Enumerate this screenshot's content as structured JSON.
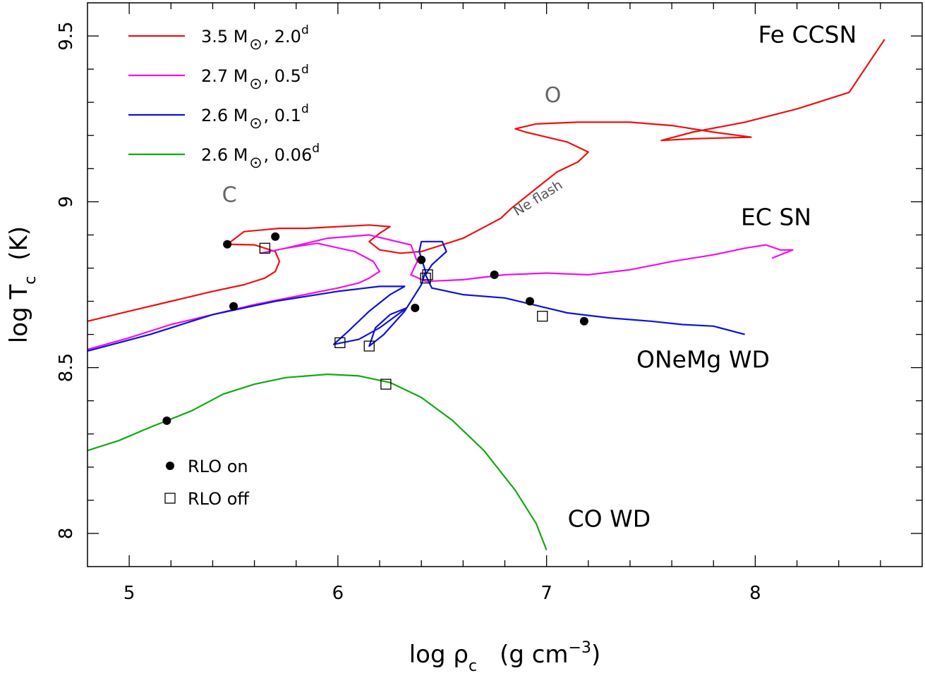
{
  "chart_data": {
    "type": "line",
    "xlabel": "log ρ",
    "xlabel_sub": "c",
    "xlabel_units": "(g cm",
    "xlabel_exp": "−3",
    "ylabel": "log T",
    "ylabel_sub": "c",
    "ylabel_units": "(K)",
    "xlim": [
      4.8,
      8.8
    ],
    "ylim": [
      7.9,
      9.6
    ],
    "xticks": [
      5,
      6,
      7,
      8
    ],
    "yticks": [
      8,
      8.5,
      9,
      9.5
    ],
    "xtick_labels": [
      "5",
      "6",
      "7",
      "8"
    ],
    "ytick_labels": [
      "8",
      "8.5",
      "9",
      "9.5"
    ],
    "legend_position": "top-left",
    "series": [
      {
        "name_mass": "3.5 M",
        "name_period": ", 2.0",
        "name_exp": "d",
        "color": "#ee1111",
        "points": [
          [
            4.8,
            8.64
          ],
          [
            5.0,
            8.67
          ],
          [
            5.2,
            8.7
          ],
          [
            5.4,
            8.73
          ],
          [
            5.55,
            8.75
          ],
          [
            5.65,
            8.77
          ],
          [
            5.7,
            8.79
          ],
          [
            5.72,
            8.82
          ],
          [
            5.7,
            8.85
          ],
          [
            5.6,
            8.87
          ],
          [
            5.47,
            8.872
          ],
          [
            5.55,
            8.91
          ],
          [
            5.72,
            8.92
          ],
          [
            5.85,
            8.92
          ],
          [
            6.0,
            8.925
          ],
          [
            6.15,
            8.93
          ],
          [
            6.25,
            8.925
          ],
          [
            6.2,
            8.905
          ],
          [
            6.15,
            8.88
          ],
          [
            6.2,
            8.855
          ],
          [
            6.3,
            8.845
          ],
          [
            6.4,
            8.85
          ],
          [
            6.5,
            8.87
          ],
          [
            6.6,
            8.89
          ],
          [
            6.72,
            8.93
          ],
          [
            6.78,
            8.95
          ],
          [
            6.83,
            8.98
          ],
          [
            6.95,
            9.04
          ],
          [
            7.05,
            9.09
          ],
          [
            7.15,
            9.12
          ],
          [
            7.2,
            9.15
          ],
          [
            7.1,
            9.18
          ],
          [
            6.9,
            9.21
          ],
          [
            6.85,
            9.22
          ],
          [
            6.95,
            9.235
          ],
          [
            7.15,
            9.24
          ],
          [
            7.4,
            9.24
          ],
          [
            7.6,
            9.23
          ],
          [
            7.8,
            9.21
          ],
          [
            7.98,
            9.195
          ],
          [
            7.7,
            9.19
          ],
          [
            7.55,
            9.185
          ],
          [
            7.7,
            9.21
          ],
          [
            7.95,
            9.24
          ],
          [
            8.2,
            9.28
          ],
          [
            8.45,
            9.33
          ],
          [
            8.62,
            9.49
          ]
        ]
      },
      {
        "name_mass": "2.7 M",
        "name_period": ", 0.5",
        "name_exp": "d",
        "color": "#ee11ee",
        "points": [
          [
            4.8,
            8.555
          ],
          [
            5.0,
            8.59
          ],
          [
            5.2,
            8.63
          ],
          [
            5.4,
            8.66
          ],
          [
            5.6,
            8.69
          ],
          [
            5.8,
            8.715
          ],
          [
            6.0,
            8.74
          ],
          [
            6.1,
            8.755
          ],
          [
            6.15,
            8.77
          ],
          [
            6.2,
            8.79
          ],
          [
            6.17,
            8.82
          ],
          [
            6.08,
            8.85
          ],
          [
            5.9,
            8.875
          ],
          [
            5.75,
            8.86
          ],
          [
            5.63,
            8.845
          ],
          [
            5.75,
            8.86
          ],
          [
            5.95,
            8.89
          ],
          [
            6.15,
            8.9
          ],
          [
            6.35,
            8.87
          ],
          [
            6.38,
            8.82
          ],
          [
            6.35,
            8.78
          ],
          [
            6.42,
            8.76
          ],
          [
            6.6,
            8.765
          ],
          [
            6.8,
            8.78
          ],
          [
            7.0,
            8.785
          ],
          [
            7.2,
            8.78
          ],
          [
            7.4,
            8.795
          ],
          [
            7.6,
            8.82
          ],
          [
            7.8,
            8.84
          ],
          [
            7.95,
            8.86
          ],
          [
            8.05,
            8.87
          ],
          [
            8.12,
            8.855
          ],
          [
            8.18,
            8.855
          ],
          [
            8.12,
            8.84
          ],
          [
            8.08,
            8.83
          ]
        ]
      },
      {
        "name_mass": "2.6 M",
        "name_period": ", 0.1",
        "name_exp": "d",
        "color": "#1111dd",
        "points": [
          [
            4.8,
            8.55
          ],
          [
            5.1,
            8.6
          ],
          [
            5.4,
            8.66
          ],
          [
            5.7,
            8.7
          ],
          [
            6.0,
            8.73
          ],
          [
            6.2,
            8.745
          ],
          [
            6.32,
            8.745
          ],
          [
            6.25,
            8.72
          ],
          [
            6.15,
            8.67
          ],
          [
            6.05,
            8.61
          ],
          [
            5.98,
            8.57
          ],
          [
            6.1,
            8.585
          ],
          [
            6.2,
            8.62
          ],
          [
            6.33,
            8.68
          ],
          [
            6.25,
            8.66
          ],
          [
            6.18,
            8.62
          ],
          [
            6.15,
            8.565
          ],
          [
            6.22,
            8.6
          ],
          [
            6.32,
            8.67
          ],
          [
            6.4,
            8.75
          ],
          [
            6.42,
            8.79
          ],
          [
            6.39,
            8.85
          ],
          [
            6.4,
            8.88
          ],
          [
            6.5,
            8.88
          ],
          [
            6.52,
            8.85
          ],
          [
            6.45,
            8.81
          ],
          [
            6.42,
            8.78
          ],
          [
            6.45,
            8.74
          ],
          [
            6.6,
            8.72
          ],
          [
            6.8,
            8.71
          ],
          [
            7.0,
            8.68
          ],
          [
            7.1,
            8.665
          ],
          [
            7.3,
            8.65
          ],
          [
            7.5,
            8.64
          ],
          [
            7.65,
            8.63
          ],
          [
            7.8,
            8.625
          ],
          [
            7.95,
            8.6
          ]
        ]
      },
      {
        "name_mass": "2.6 M",
        "name_period": ", 0.06",
        "name_exp": "d",
        "color": "#11aa11",
        "points": [
          [
            4.8,
            8.25
          ],
          [
            4.95,
            8.28
          ],
          [
            5.1,
            8.32
          ],
          [
            5.3,
            8.37
          ],
          [
            5.45,
            8.42
          ],
          [
            5.6,
            8.45
          ],
          [
            5.75,
            8.47
          ],
          [
            5.95,
            8.48
          ],
          [
            6.1,
            8.475
          ],
          [
            6.25,
            8.455
          ],
          [
            6.4,
            8.41
          ],
          [
            6.55,
            8.34
          ],
          [
            6.7,
            8.25
          ],
          [
            6.85,
            8.13
          ],
          [
            6.95,
            8.03
          ],
          [
            7.0,
            7.95
          ]
        ]
      }
    ],
    "rlo_on": [
      [
        5.47,
        8.872
      ],
      [
        5.7,
        8.895
      ],
      [
        5.5,
        8.685
      ],
      [
        6.4,
        8.825
      ],
      [
        6.37,
        8.68
      ],
      [
        6.75,
        8.78
      ],
      [
        6.92,
        8.7
      ],
      [
        7.18,
        8.64
      ],
      [
        5.18,
        8.34
      ]
    ],
    "rlo_off": [
      [
        5.65,
        8.86
      ],
      [
        6.01,
        8.575
      ],
      [
        6.15,
        8.565
      ],
      [
        6.43,
        8.78
      ],
      [
        6.42,
        8.77
      ],
      [
        6.98,
        8.655
      ],
      [
        6.23,
        8.45
      ]
    ],
    "legend_rlo_on": "RLO on",
    "legend_rlo_off": "RLO off",
    "regions": [
      {
        "label": "Fe CCSN",
        "x": 8.25,
        "y": 9.48
      },
      {
        "label": "EC SN",
        "x": 8.1,
        "y": 8.93
      },
      {
        "label": "ONeMg WD",
        "x": 7.75,
        "y": 8.5
      },
      {
        "label": "CO WD",
        "x": 7.3,
        "y": 8.02
      }
    ],
    "phases": [
      {
        "label": "C",
        "x": 5.48,
        "y": 9.0
      },
      {
        "label": "O",
        "x": 7.03,
        "y": 9.3
      }
    ],
    "annotations": [
      {
        "label": "Ne flash",
        "x": 6.97,
        "y": 9.0,
        "angle": -32
      }
    ]
  }
}
